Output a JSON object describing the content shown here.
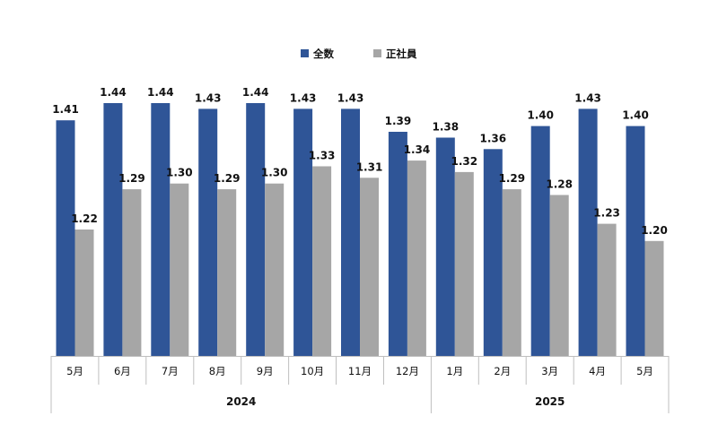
{
  "chart_data": {
    "type": "bar",
    "categories": [
      "5月",
      "6月",
      "7月",
      "8月",
      "9月",
      "10月",
      "11月",
      "12月",
      "1月",
      "2月",
      "3月",
      "4月",
      "5月"
    ],
    "groups": [
      {
        "label": "2024",
        "count": 8
      },
      {
        "label": "2025",
        "count": 5
      }
    ],
    "series": [
      {
        "name": "全数",
        "color": "#2f5597",
        "values": [
          1.41,
          1.44,
          1.44,
          1.43,
          1.44,
          1.43,
          1.43,
          1.39,
          1.38,
          1.36,
          1.4,
          1.43,
          1.4
        ]
      },
      {
        "name": "正社員",
        "color": "#a6a6a6",
        "values": [
          1.22,
          1.29,
          1.3,
          1.29,
          1.3,
          1.33,
          1.31,
          1.34,
          1.32,
          1.29,
          1.28,
          1.23,
          1.2
        ]
      }
    ],
    "data_labels": [
      [
        "1.41",
        "1.44",
        "1.44",
        "1.43",
        "1.44",
        "1.43",
        "1.43",
        "1.39",
        "1.38",
        "1.36",
        "1.40",
        "1.43",
        "1.40"
      ],
      [
        "1.22",
        "1.29",
        "1.30",
        "1.29",
        "1.30",
        "1.33",
        "1.31",
        "1.34",
        "1.32",
        "1.29",
        "1.28",
        "1.23",
        "1.20"
      ]
    ],
    "legend_position": "top-center",
    "grid": false,
    "ylim": [
      1.0,
      1.44
    ]
  }
}
